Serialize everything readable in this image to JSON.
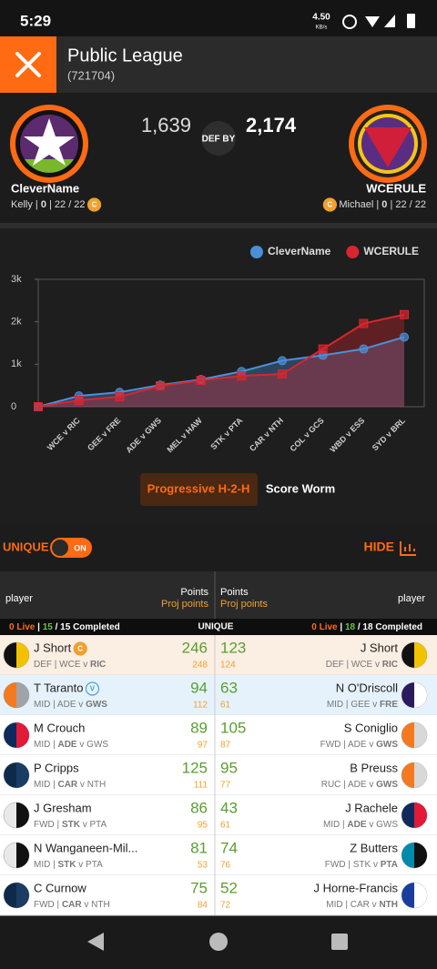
{
  "status_bar": {
    "time": "5:29",
    "speed": "4.50",
    "speed_unit": "KB/s"
  },
  "header": {
    "title": "Public League",
    "subtitle": "(721704)"
  },
  "matchup": {
    "left": {
      "name": "CleverName",
      "score": "1,639",
      "badge": "C",
      "info": [
        {
          "text": "Kelly | "
        },
        {
          "text": "0",
          "bold": true
        },
        {
          "text": " | 22 / 22"
        }
      ]
    },
    "result": "DEF BY",
    "right": {
      "name": "WCERULE",
      "score": "2,174",
      "badge": "C",
      "info": [
        {
          "text": "Michael | "
        },
        {
          "text": "0",
          "bold": true
        },
        {
          "text": " | 22 / 22"
        }
      ]
    }
  },
  "chart_data": {
    "type": "line",
    "categories": [
      null,
      "WCE v RIC",
      "GEE v FRE",
      "ADE v GWS",
      "MEL v HAW",
      "STK v PTA",
      "CAR v NTH",
      "COL v GCS",
      "WBD v ESS",
      "SYD v BRL"
    ],
    "series": [
      {
        "name": "CleverName",
        "color": "#4a90d9",
        "marker": "circle",
        "values": [
          0,
          255,
          340,
          510,
          640,
          830,
          1085,
          1210,
          1360,
          1640
        ]
      },
      {
        "name": "WCERULE",
        "color": "#d9262e",
        "marker": "square",
        "values": [
          0,
          150,
          235,
          490,
          620,
          725,
          770,
          1360,
          1960,
          2170
        ]
      }
    ],
    "ylim": [
      0,
      3000
    ],
    "yticks": [
      0,
      {
        "value": 1000,
        "label": "1k"
      },
      {
        "value": 2000,
        "label": "2k"
      },
      {
        "value": 3000,
        "label": "3k"
      }
    ],
    "grid": false,
    "legend": "top-right"
  },
  "tabs": [
    {
      "label": "Progressive H-2-H",
      "active": true
    },
    {
      "label": "Score Worm",
      "active": false
    }
  ],
  "controls": {
    "unique_label": "UNIQUE",
    "toggle": "ON",
    "hide": "HIDE"
  },
  "table": {
    "headers": {
      "left_player": "player",
      "left_points": "Points",
      "left_proj": "Proj points",
      "right_points": "Points",
      "right_proj": "Proj points",
      "right_player": "player"
    },
    "status": {
      "left": [
        {
          "text": "0 Live",
          "color": "#ff6a1a"
        },
        {
          "text": " | "
        },
        {
          "text": "15",
          "color": "#6cc04a"
        },
        {
          "text": " / 15 Completed"
        }
      ],
      "center": "UNIQUE",
      "right": [
        {
          "text": "0 Live",
          "color": "#ff6a1a"
        },
        {
          "text": " | "
        },
        {
          "text": "18",
          "color": "#6cc04a"
        },
        {
          "text": " / 18 Completed"
        }
      ]
    },
    "rows": [
      {
        "bg": "#fbeee2",
        "left": {
          "name": "J Short",
          "badge": "C",
          "points": 246,
          "proj": 248,
          "jumper": [
            "#111111",
            "#f2c200"
          ],
          "info": [
            {
              "text": "DEF | WCE v "
            },
            {
              "text": "RIC",
              "bold": true
            }
          ]
        },
        "right": {
          "name": "J Short",
          "points": 123,
          "proj": 124,
          "jumper": [
            "#111111",
            "#f2c200"
          ],
          "info": [
            {
              "text": "DEF | WCE v "
            },
            {
              "text": "RIC",
              "bold": true
            }
          ]
        }
      },
      {
        "bg": "#e6f2fb",
        "left": {
          "name": "T Taranto",
          "badge": "V",
          "points": 94,
          "proj": 112,
          "jumper": [
            "#f47a20",
            "#a0a4a8"
          ],
          "info": [
            {
              "text": "MID | ADE v "
            },
            {
              "text": "GWS",
              "bold": true
            }
          ]
        },
        "right": {
          "name": "N O'Driscoll",
          "points": 63,
          "proj": 61,
          "jumper": [
            "#2a1a5e",
            "#ffffff"
          ],
          "info": [
            {
              "text": "MID | GEE v "
            },
            {
              "text": "FRE",
              "bold": true
            }
          ]
        }
      },
      {
        "bg": "#ffffff",
        "left": {
          "name": "M Crouch",
          "points": 89,
          "proj": 97,
          "jumper": [
            "#0e2a5c",
            "#e21937"
          ],
          "info": [
            {
              "text": "MID | "
            },
            {
              "text": "ADE",
              "bold": true
            },
            {
              "text": " v GWS"
            }
          ]
        },
        "right": {
          "name": "S Coniglio",
          "points": 105,
          "proj": 87,
          "jumper": [
            "#f47a20",
            "#d8d8d8"
          ],
          "info": [
            {
              "text": "FWD | ADE v "
            },
            {
              "text": "GWS",
              "bold": true
            }
          ]
        }
      },
      {
        "bg": "#ffffff",
        "left": {
          "name": "P Cripps",
          "points": 125,
          "proj": 111,
          "jumper": [
            "#0e2a4a",
            "#1b3d63"
          ],
          "info": [
            {
              "text": "MID | "
            },
            {
              "text": "CAR",
              "bold": true
            },
            {
              "text": " v NTH"
            }
          ]
        },
        "right": {
          "name": "B Preuss",
          "points": 95,
          "proj": 77,
          "jumper": [
            "#f47a20",
            "#d8d8d8"
          ],
          "info": [
            {
              "text": "RUC | ADE v "
            },
            {
              "text": "GWS",
              "bold": true
            }
          ]
        }
      },
      {
        "bg": "#ffffff",
        "left": {
          "name": "J Gresham",
          "points": 86,
          "proj": 95,
          "jumper": [
            "#e8e8e8",
            "#111111"
          ],
          "info": [
            {
              "text": "FWD | "
            },
            {
              "text": "STK",
              "bold": true
            },
            {
              "text": " v PTA"
            }
          ]
        },
        "right": {
          "name": "J Rachele",
          "points": 43,
          "proj": 61,
          "jumper": [
            "#0e2a5c",
            "#e21937"
          ],
          "info": [
            {
              "text": "MID | "
            },
            {
              "text": "ADE",
              "bold": true
            },
            {
              "text": " v GWS"
            }
          ]
        }
      },
      {
        "bg": "#ffffff",
        "left": {
          "name": "N Wanganeen-Mil...",
          "points": 81,
          "proj": 53,
          "jumper": [
            "#e8e8e8",
            "#111111"
          ],
          "info": [
            {
              "text": "MID | "
            },
            {
              "text": "STK",
              "bold": true
            },
            {
              "text": " v PTA"
            }
          ]
        },
        "right": {
          "name": "Z Butters",
          "points": 74,
          "proj": 76,
          "jumper": [
            "#008aab",
            "#111111"
          ],
          "info": [
            {
              "text": "FWD | STK v "
            },
            {
              "text": "PTA",
              "bold": true
            }
          ]
        }
      },
      {
        "bg": "#ffffff",
        "left": {
          "name": "C Curnow",
          "points": 75,
          "proj": 84,
          "jumper": [
            "#0e2a4a",
            "#1b3d63"
          ],
          "info": [
            {
              "text": "FWD | "
            },
            {
              "text": "CAR",
              "bold": true
            },
            {
              "text": " v NTH"
            }
          ]
        },
        "right": {
          "name": "J Horne-Francis",
          "points": 52,
          "proj": 72,
          "jumper": [
            "#1a3e9e",
            "#ffffff"
          ],
          "info": [
            {
              "text": "MID | CAR v "
            },
            {
              "text": "NTH",
              "bold": true
            }
          ]
        }
      }
    ]
  }
}
